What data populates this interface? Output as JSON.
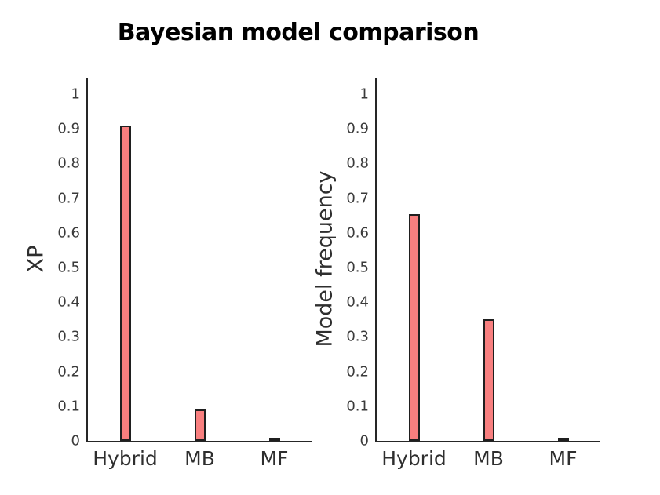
{
  "title": "Bayesian model comparison",
  "chart_data": [
    {
      "type": "bar",
      "categories": [
        "Hybrid",
        "MB",
        "MF"
      ],
      "values": [
        0.91,
        0.09,
        0.01
      ],
      "ylabel": "XP",
      "xlabel": "",
      "ylim": [
        0,
        1.05
      ],
      "yticks": [
        0,
        0.1,
        0.2,
        0.3,
        0.4,
        0.5,
        0.6,
        0.7,
        0.8,
        0.9,
        1
      ],
      "ytick_labels": [
        "0",
        "0.1",
        "0.2",
        "0.3",
        "0.4",
        "0.5",
        "0.6",
        "0.7",
        "0.8",
        "0.9",
        "1"
      ],
      "grid": false,
      "legend": null,
      "bar_color": "#F87F7F",
      "bar_edge_color": "#1f1f1f",
      "axis_color": "#262626"
    },
    {
      "type": "bar",
      "categories": [
        "Hybrid",
        "MB",
        "MF"
      ],
      "values": [
        0.655,
        0.35,
        0.005
      ],
      "ylabel": "Model frequency",
      "xlabel": "",
      "ylim": [
        0,
        1.05
      ],
      "yticks": [
        0,
        0.1,
        0.2,
        0.3,
        0.4,
        0.5,
        0.6,
        0.7,
        0.8,
        0.9,
        1
      ],
      "ytick_labels": [
        "0",
        "0.1",
        "0.2",
        "0.3",
        "0.4",
        "0.5",
        "0.6",
        "0.7",
        "0.8",
        "0.9",
        "1"
      ],
      "grid": false,
      "legend": null,
      "bar_color": "#F87F7F",
      "bar_edge_color": "#1f1f1f",
      "axis_color": "#262626"
    }
  ]
}
